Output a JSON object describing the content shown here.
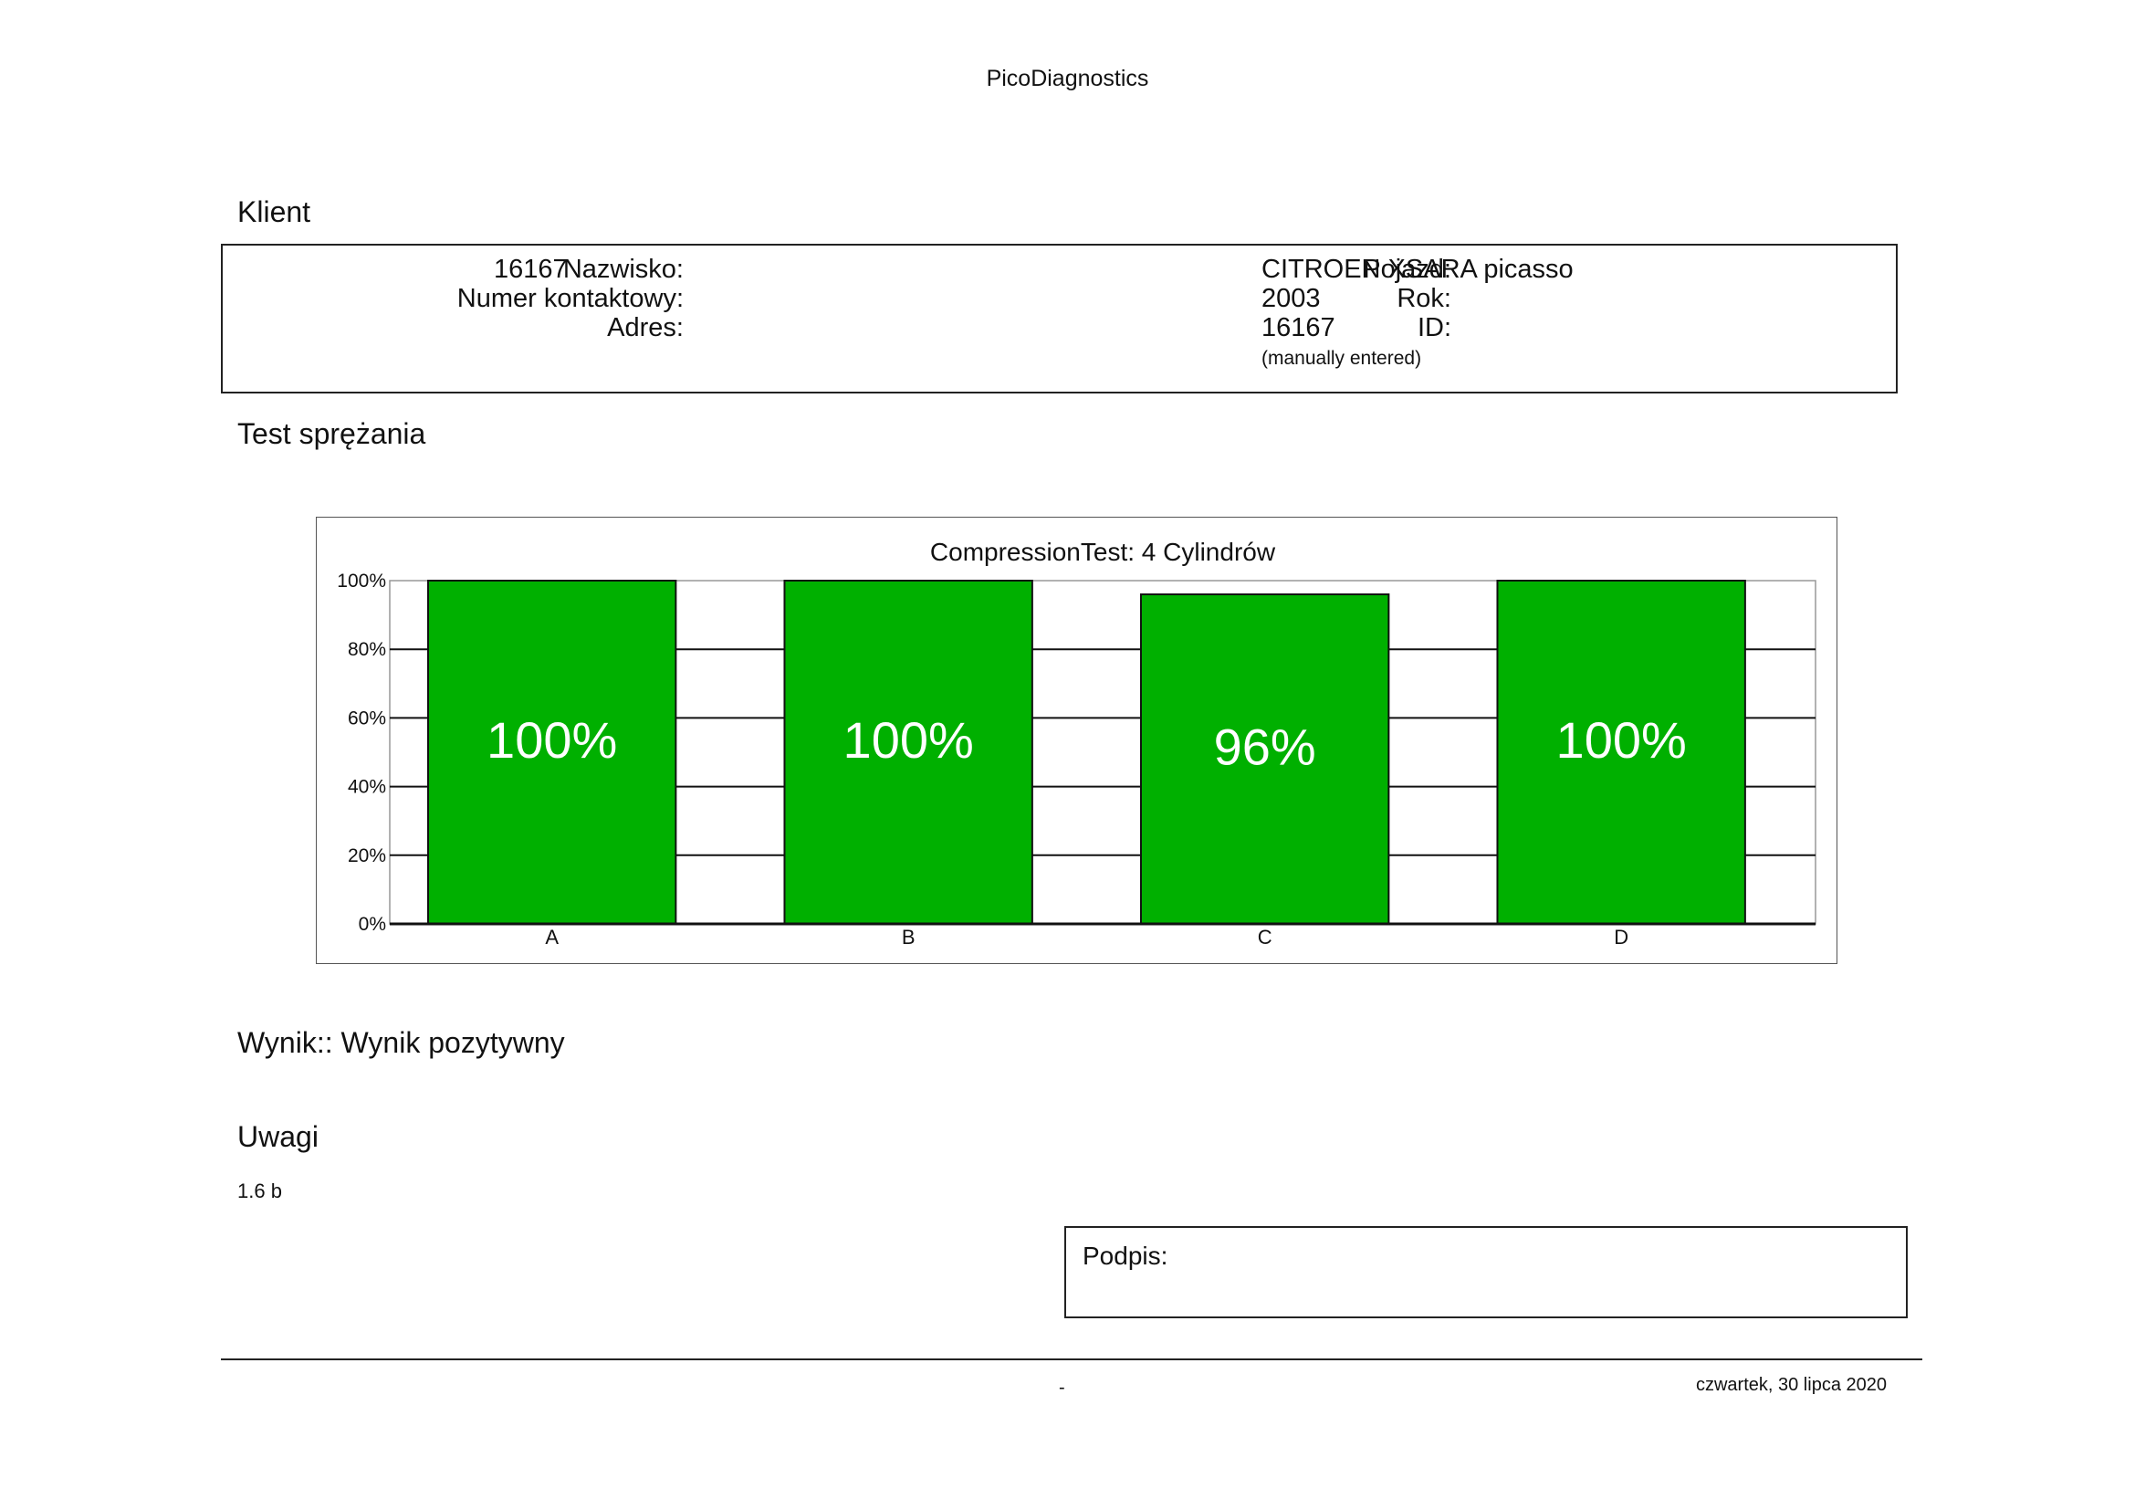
{
  "report": {
    "app_title": "PicoDiagnostics"
  },
  "client": {
    "section_title": "Klient",
    "name_label": "Nazwisko:",
    "name_value": "16167",
    "contact_label": "Numer kontaktowy:",
    "contact_value": "",
    "address_label": "Adres:",
    "address_value": "",
    "vehicle_label": "Pojazd:",
    "vehicle_value": "CITROEN XSARA picasso",
    "year_label": "Rok:",
    "year_value": "2003",
    "id_label": "ID:",
    "id_value": "16167",
    "id_note": "(manually entered)"
  },
  "test": {
    "section_title": "Test sprężania"
  },
  "chart_data": {
    "type": "bar",
    "title": "CompressionTest: 4 Cylindrów",
    "categories": [
      "A",
      "B",
      "C",
      "D"
    ],
    "values": [
      100,
      100,
      96,
      100
    ],
    "value_labels": [
      "100%",
      "100%",
      "96%",
      "100%"
    ],
    "yticks": [
      "0%",
      "20%",
      "40%",
      "60%",
      "80%",
      "100%"
    ],
    "ylim": [
      0,
      100
    ],
    "xlabel": "",
    "ylabel": "",
    "grid": true,
    "bar_color": "#00b000",
    "label_color": "#ffffff"
  },
  "result": {
    "text": "Wynik:: Wynik pozytywny"
  },
  "notes": {
    "section_title": "Uwagi",
    "text": "1.6 b"
  },
  "signature": {
    "label": "Podpis:"
  },
  "footer": {
    "dash": "-",
    "date": "czwartek, 30 lipca 2020"
  }
}
